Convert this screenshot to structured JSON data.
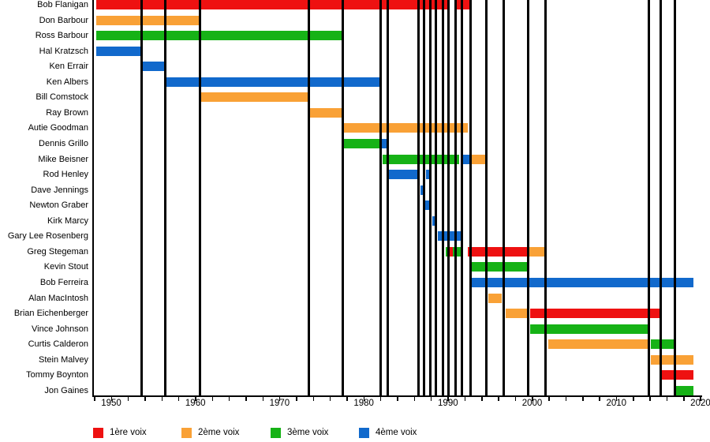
{
  "chart_data": {
    "type": "timeline",
    "title": "",
    "x_axis": {
      "tick_labels": [
        "1950",
        "1960",
        "1970",
        "1980",
        "1990",
        "2000",
        "2010",
        "2020"
      ],
      "tick_years": [
        1950,
        1960,
        1970,
        1980,
        1990,
        2000,
        2010,
        2020
      ],
      "minor_tick_step_years": 2,
      "range_years": [
        1947.8,
        2020.2
      ],
      "grid": false
    },
    "voice_colors": {
      "1ère voix": "#ee1111",
      "2ème voix": "#f9a136",
      "3ème voix": "#16b216",
      "4ème voix": "#1169cc"
    },
    "legend": [
      {
        "label": "1ère voix",
        "color": "#ee1111"
      },
      {
        "label": "2ème voix",
        "color": "#f9a136"
      },
      {
        "label": "3ème voix",
        "color": "#16b216"
      },
      {
        "label": "4ème voix",
        "color": "#1169cc"
      }
    ],
    "legend_position": "bottom",
    "event_line_color": "#000000",
    "event_lines_years": [
      1953.6,
      1956.4,
      1960.5,
      1973.5,
      1977.5,
      1982.0,
      1982.8,
      1986.5,
      1987.2,
      1987.9,
      1988.6,
      1989.4,
      1990.1,
      1990.9,
      1991.7,
      1992.65,
      1994.6,
      1996.6,
      1999.5,
      2001.6,
      2013.9,
      2015.25,
      2016.95
    ],
    "members": [
      {
        "name": "Bob Flanigan",
        "segments": [
          {
            "voice": "1ère voix",
            "start": 1948.2,
            "end": 1990.2
          },
          {
            "voice": "1ère voix",
            "start": 1990.9,
            "end": 1992.6
          }
        ]
      },
      {
        "name": "Don Barbour",
        "segments": [
          {
            "voice": "2ème voix",
            "start": 1948.2,
            "end": 1960.5
          }
        ]
      },
      {
        "name": "Ross Barbour",
        "segments": [
          {
            "voice": "3ème voix",
            "start": 1948.2,
            "end": 1977.4
          }
        ]
      },
      {
        "name": "Hal Kratzsch",
        "segments": [
          {
            "voice": "4ème voix",
            "start": 1948.2,
            "end": 1953.6
          }
        ]
      },
      {
        "name": "Ken Errair",
        "segments": [
          {
            "voice": "4ème voix",
            "start": 1953.6,
            "end": 1956.4
          }
        ]
      },
      {
        "name": "Ken Albers",
        "segments": [
          {
            "voice": "4ème voix",
            "start": 1956.4,
            "end": 1982.0
          }
        ]
      },
      {
        "name": "Bill Comstock",
        "segments": [
          {
            "voice": "2ème voix",
            "start": 1960.6,
            "end": 1973.5
          }
        ]
      },
      {
        "name": "Ray Brown",
        "segments": [
          {
            "voice": "2ème voix",
            "start": 1973.6,
            "end": 1977.4
          }
        ]
      },
      {
        "name": "Autie Goodman",
        "segments": [
          {
            "voice": "2ème voix",
            "start": 1977.6,
            "end": 1992.4
          }
        ]
      },
      {
        "name": "Dennis Grillo",
        "segments": [
          {
            "voice": "3ème voix",
            "start": 1977.6,
            "end": 1982.0
          },
          {
            "voice": "4ème voix",
            "start": 1982.1,
            "end": 1982.8
          }
        ]
      },
      {
        "name": "Mike Beisner",
        "segments": [
          {
            "voice": "3ème voix",
            "start": 1982.2,
            "end": 1991.3
          },
          {
            "voice": "4ème voix",
            "start": 1991.6,
            "end": 1992.5
          },
          {
            "voice": "2ème voix",
            "start": 1992.8,
            "end": 1994.6
          }
        ]
      },
      {
        "name": "Rod Henley",
        "segments": [
          {
            "voice": "4ème voix",
            "start": 1982.9,
            "end": 1986.4
          },
          {
            "voice": "4ème voix",
            "start": 1987.4,
            "end": 1988.0
          }
        ]
      },
      {
        "name": "Dave Jennings",
        "segments": [
          {
            "voice": "4ème voix",
            "start": 1986.7,
            "end": 1987.3
          }
        ]
      },
      {
        "name": "Newton Graber",
        "segments": [
          {
            "voice": "4ème voix",
            "start": 1987.3,
            "end": 1987.9
          }
        ]
      },
      {
        "name": "Kirk Marcy",
        "segments": [
          {
            "voice": "4ème voix",
            "start": 1988.1,
            "end": 1988.7
          }
        ]
      },
      {
        "name": "Gary Lee Rosenberg",
        "segments": [
          {
            "voice": "4ème voix",
            "start": 1988.8,
            "end": 1991.6
          }
        ]
      },
      {
        "name": "Greg Stegeman",
        "segments": [
          {
            "voice": "3ème voix",
            "start": 1989.7,
            "end": 1990.1
          },
          {
            "voice": "1ère voix",
            "start": 1990.1,
            "end": 1990.6
          },
          {
            "voice": "3ème voix",
            "start": 1990.6,
            "end": 1991.7
          },
          {
            "voice": "1ère voix",
            "start": 1992.4,
            "end": 1999.5
          },
          {
            "voice": "2ème voix",
            "start": 1999.5,
            "end": 2001.6
          }
        ]
      },
      {
        "name": "Kevin Stout",
        "segments": [
          {
            "voice": "3ème voix",
            "start": 1992.8,
            "end": 1999.4
          }
        ]
      },
      {
        "name": "Bob Ferreira",
        "segments": [
          {
            "voice": "4ème voix",
            "start": 1992.8,
            "end": 2019.2
          }
        ]
      },
      {
        "name": "Alan MacIntosh",
        "segments": [
          {
            "voice": "2ème voix",
            "start": 1994.8,
            "end": 1996.4
          }
        ]
      },
      {
        "name": "Brian Eichenberger",
        "segments": [
          {
            "voice": "2ème voix",
            "start": 1996.9,
            "end": 1999.4
          },
          {
            "voice": "1ère voix",
            "start": 1999.8,
            "end": 2015.2
          }
        ]
      },
      {
        "name": "Vince Johnson",
        "segments": [
          {
            "voice": "3ème voix",
            "start": 1999.8,
            "end": 2013.8
          }
        ]
      },
      {
        "name": "Curtis Calderon",
        "segments": [
          {
            "voice": "2ème voix",
            "start": 2001.9,
            "end": 2013.8
          },
          {
            "voice": "3ème voix",
            "start": 2014.1,
            "end": 2017.0
          }
        ]
      },
      {
        "name": "Stein Malvey",
        "segments": [
          {
            "voice": "2ème voix",
            "start": 2014.1,
            "end": 2019.2
          }
        ]
      },
      {
        "name": "Tommy Boynton",
        "segments": [
          {
            "voice": "1ère voix",
            "start": 2015.4,
            "end": 2019.2
          }
        ]
      },
      {
        "name": "Jon Gaines",
        "segments": [
          {
            "voice": "3ème voix",
            "start": 2017.1,
            "end": 2019.2
          }
        ]
      }
    ]
  }
}
